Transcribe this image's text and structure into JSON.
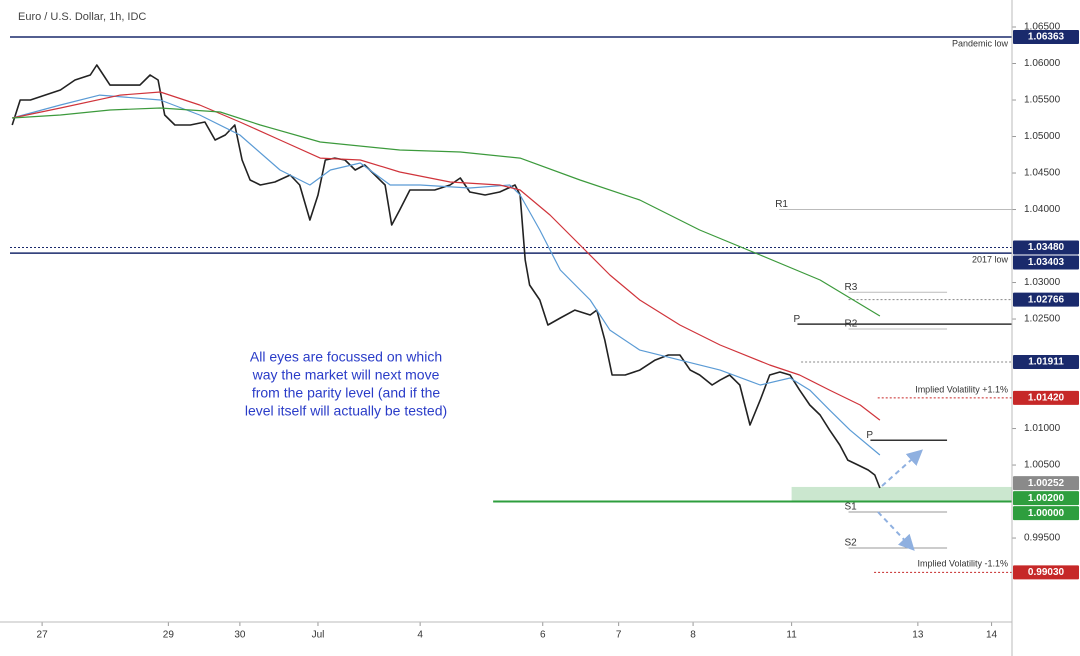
{
  "chart_data": {
    "type": "line",
    "title": "Euro / U.S. Dollar, 1h, IDC",
    "annotation": [
      "All eyes are focussed on which",
      "way the market will next move",
      "from the parity level (and if the",
      "level itself will actually be tested)"
    ],
    "xlim": [
      -0.44,
      13.29
    ],
    "ylim": [
      0.9835,
      1.0687
    ],
    "xticks": [
      {
        "value": 0,
        "label": "27"
      },
      {
        "value": 1.73,
        "label": "29"
      },
      {
        "value": 2.71,
        "label": "30"
      },
      {
        "value": 3.78,
        "label": "Jul"
      },
      {
        "value": 5.18,
        "label": "4"
      },
      {
        "value": 6.86,
        "label": "6"
      },
      {
        "value": 7.9,
        "label": "7"
      },
      {
        "value": 8.92,
        "label": "8"
      },
      {
        "value": 10.27,
        "label": "11"
      },
      {
        "value": 12.0,
        "label": "13"
      },
      {
        "value": 13.01,
        "label": "14"
      }
    ],
    "yticks": [
      {
        "value": 1.065,
        "label": "1.06500"
      },
      {
        "value": 1.06,
        "label": "1.06000"
      },
      {
        "value": 1.055,
        "label": "1.05500"
      },
      {
        "value": 1.05,
        "label": "1.05000"
      },
      {
        "value": 1.045,
        "label": "1.04500"
      },
      {
        "value": 1.04,
        "label": "1.04000"
      },
      {
        "value": 1.03,
        "label": "1.03000"
      },
      {
        "value": 1.025,
        "label": "1.02500"
      },
      {
        "value": 1.01,
        "label": "1.01000"
      },
      {
        "value": 1.005,
        "label": "1.00500"
      },
      {
        "value": 0.995,
        "label": "0.99500"
      }
    ],
    "series": [
      {
        "color": "#222222",
        "x": [
          -0.41,
          -0.3,
          -0.16,
          0.04,
          0.25,
          0.45,
          0.66,
          0.75,
          0.93,
          1.14,
          1.34,
          1.48,
          1.59,
          1.68,
          1.82,
          2.03,
          2.23,
          2.37,
          2.51,
          2.64,
          2.74,
          2.85,
          2.99,
          3.19,
          3.4,
          3.53,
          3.67,
          3.78,
          3.88,
          4.01,
          4.15,
          4.29,
          4.42,
          4.56,
          4.7,
          4.79,
          4.9,
          5.04,
          5.18,
          5.38,
          5.59,
          5.73,
          5.86,
          6.07,
          6.27,
          6.48,
          6.55,
          6.62,
          6.68,
          6.82,
          6.93,
          7.1,
          7.3,
          7.51,
          7.6,
          7.71,
          7.81,
          7.99,
          8.19,
          8.4,
          8.58,
          8.74,
          8.88,
          9.01,
          9.18,
          9.29,
          9.42,
          9.56,
          9.7,
          9.84,
          9.97,
          10.11,
          10.25,
          10.38,
          10.52,
          10.66,
          10.79,
          10.93,
          11.04,
          11.18,
          11.32,
          11.41,
          11.48
        ],
        "values": [
          1.05158,
          1.055,
          1.055,
          1.05568,
          1.05637,
          1.05774,
          1.05842,
          1.05979,
          1.05705,
          1.05705,
          1.05705,
          1.05842,
          1.05774,
          1.05295,
          1.05158,
          1.05158,
          1.05199,
          1.04952,
          1.05021,
          1.05158,
          1.04678,
          1.04404,
          1.04336,
          1.04377,
          1.04473,
          1.04336,
          1.03856,
          1.04199,
          1.04678,
          1.04705,
          1.04678,
          1.04541,
          1.0461,
          1.04473,
          1.04336,
          1.03788,
          1.03993,
          1.04267,
          1.04267,
          1.04267,
          1.04336,
          1.04432,
          1.0424,
          1.04199,
          1.0424,
          1.04336,
          1.04199,
          1.03308,
          1.02966,
          1.0276,
          1.02418,
          1.02514,
          1.02623,
          1.02555,
          1.02623,
          1.02212,
          1.01733,
          1.01733,
          1.01801,
          1.01938,
          1.02007,
          1.02007,
          1.01801,
          1.01733,
          1.01596,
          1.01664,
          1.01733,
          1.01596,
          1.01048,
          1.0139,
          1.01733,
          1.01774,
          1.01733,
          1.01527,
          1.01322,
          1.01185,
          1.00979,
          1.00774,
          1.00568,
          1.005,
          1.00432,
          1.00363,
          1.00185
        ]
      },
      {
        "color": "#5b9bd5",
        "x": [
          -0.41,
          0.25,
          0.79,
          1.62,
          2.16,
          2.71,
          3.26,
          3.67,
          3.95,
          4.36,
          4.77,
          5.18,
          5.86,
          6.41,
          6.55,
          6.82,
          7.1,
          7.51,
          7.78,
          8.19,
          8.74,
          9.29,
          9.84,
          10.25,
          10.52,
          10.79,
          11.07,
          11.48
        ],
        "values": [
          1.05253,
          1.05432,
          1.05568,
          1.055,
          1.05295,
          1.05021,
          1.04541,
          1.04336,
          1.04541,
          1.04637,
          1.04336,
          1.04336,
          1.04295,
          1.04336,
          1.04199,
          1.03719,
          1.03171,
          1.0276,
          1.02349,
          1.02075,
          1.01938,
          1.01801,
          1.01596,
          1.01692,
          1.01527,
          1.01253,
          1.00979,
          1.00637
        ]
      },
      {
        "color": "#d0343b",
        "x": [
          -0.41,
          0.25,
          1.07,
          1.62,
          2.16,
          2.71,
          3.26,
          3.81,
          4.36,
          4.9,
          5.59,
          6.27,
          6.55,
          6.96,
          7.37,
          7.78,
          8.19,
          8.74,
          9.29,
          9.97,
          10.38,
          10.79,
          11.21,
          11.48
        ],
        "values": [
          1.05253,
          1.0539,
          1.05568,
          1.0561,
          1.05432,
          1.05199,
          1.04952,
          1.04705,
          1.04678,
          1.04514,
          1.04377,
          1.04336,
          1.04267,
          1.03925,
          1.03514,
          1.03103,
          1.0276,
          1.02418,
          1.02144,
          1.0187,
          1.01733,
          1.01527,
          1.01322,
          1.01116
        ]
      },
      {
        "color": "#3c9a3c",
        "x": [
          -0.41,
          0.25,
          0.93,
          1.62,
          2.44,
          2.99,
          3.81,
          4.9,
          5.73,
          6.55,
          7.37,
          8.19,
          9.01,
          9.84,
          10.66,
          11.48
        ],
        "values": [
          1.05253,
          1.05295,
          1.05363,
          1.0539,
          1.05336,
          1.05158,
          1.04925,
          1.04815,
          1.04788,
          1.04705,
          1.04404,
          1.0413,
          1.03719,
          1.03377,
          1.03034,
          1.02541
        ]
      }
    ],
    "levels": [
      {
        "value": 1.06363,
        "label": "Pandemic low",
        "color": "#1a2a6c",
        "style": "solid",
        "x_start": -0.44
      },
      {
        "value": 1.0348,
        "color": "#1a2a6c",
        "style": "dotted",
        "x_start": -0.44
      },
      {
        "value": 1.03403,
        "label": "2017 low",
        "color": "#1a2a6c",
        "style": "solid",
        "x_start": -0.44
      },
      {
        "value": 1.02766,
        "color": "#888888",
        "style": "dotted",
        "x_start": 11.05
      },
      {
        "value": 1.01911,
        "color": "#888888",
        "style": "dotted",
        "x_start": 10.4
      },
      {
        "value": 1.0142,
        "label": "Implied Volatility +1.1%",
        "color": "#c62828",
        "style": "dotted",
        "x_start": 11.45
      },
      {
        "value": 0.9903,
        "label": "Implied Volatility -1.1%",
        "color": "#c62828",
        "style": "dotted",
        "x_start": 11.4
      },
      {
        "value": 1.0,
        "color": "#2e9e3e",
        "style": "solid",
        "x_start": 6.18
      }
    ],
    "zone": {
      "from": 1.0,
      "to": 1.002,
      "color": "#2e9e3e",
      "x_start": 10.27
    },
    "pivots": [
      {
        "label": "P",
        "value": 1.0243,
        "x_start": 10.35,
        "x_end": 13.29,
        "color": "#333333"
      },
      {
        "label": "P",
        "value": 1.0084,
        "x_start": 11.35,
        "x_end": 12.4,
        "color": "#333333"
      },
      {
        "label": "R1",
        "value": 1.04,
        "x_start": 10.1,
        "x_end": 13.29,
        "color": "#bbbbbb"
      },
      {
        "label": "R3",
        "value": 1.02866,
        "x_start": 11.05,
        "x_end": 12.4,
        "color": "#bbbbbb"
      },
      {
        "label": "R2",
        "value": 1.02364,
        "x_start": 11.05,
        "x_end": 12.4,
        "color": "#bbbbbb"
      },
      {
        "label": "S1",
        "value": 0.99856,
        "x_start": 11.05,
        "x_end": 12.4,
        "color": "#999999"
      },
      {
        "label": "S2",
        "value": 0.99363,
        "x_start": 11.05,
        "x_end": 12.4,
        "color": "#999999"
      }
    ],
    "tags": [
      {
        "value": 1.06363,
        "label": "1.06363",
        "color": "#1a2a6c"
      },
      {
        "value": 1.0348,
        "label": "1.03480",
        "color": "#1a2a6c"
      },
      {
        "value": 1.03403,
        "label": "1.03403",
        "color": "#1a2a6c"
      },
      {
        "value": 1.02766,
        "label": "1.02766",
        "color": "#1a2a6c"
      },
      {
        "value": 1.01911,
        "label": "1.01911",
        "color": "#1a2a6c"
      },
      {
        "value": 1.0142,
        "label": "1.01420",
        "color": "#c62828"
      },
      {
        "value": 1.00252,
        "label": "1.00252",
        "color": "#8a8a8a"
      },
      {
        "value": 1.002,
        "label": "1.00200",
        "color": "#2e9e3e"
      },
      {
        "value": 1.0,
        "label": "1.00000",
        "color": "#2e9e3e"
      },
      {
        "value": 0.9903,
        "label": "0.99030",
        "color": "#c62828"
      }
    ]
  }
}
